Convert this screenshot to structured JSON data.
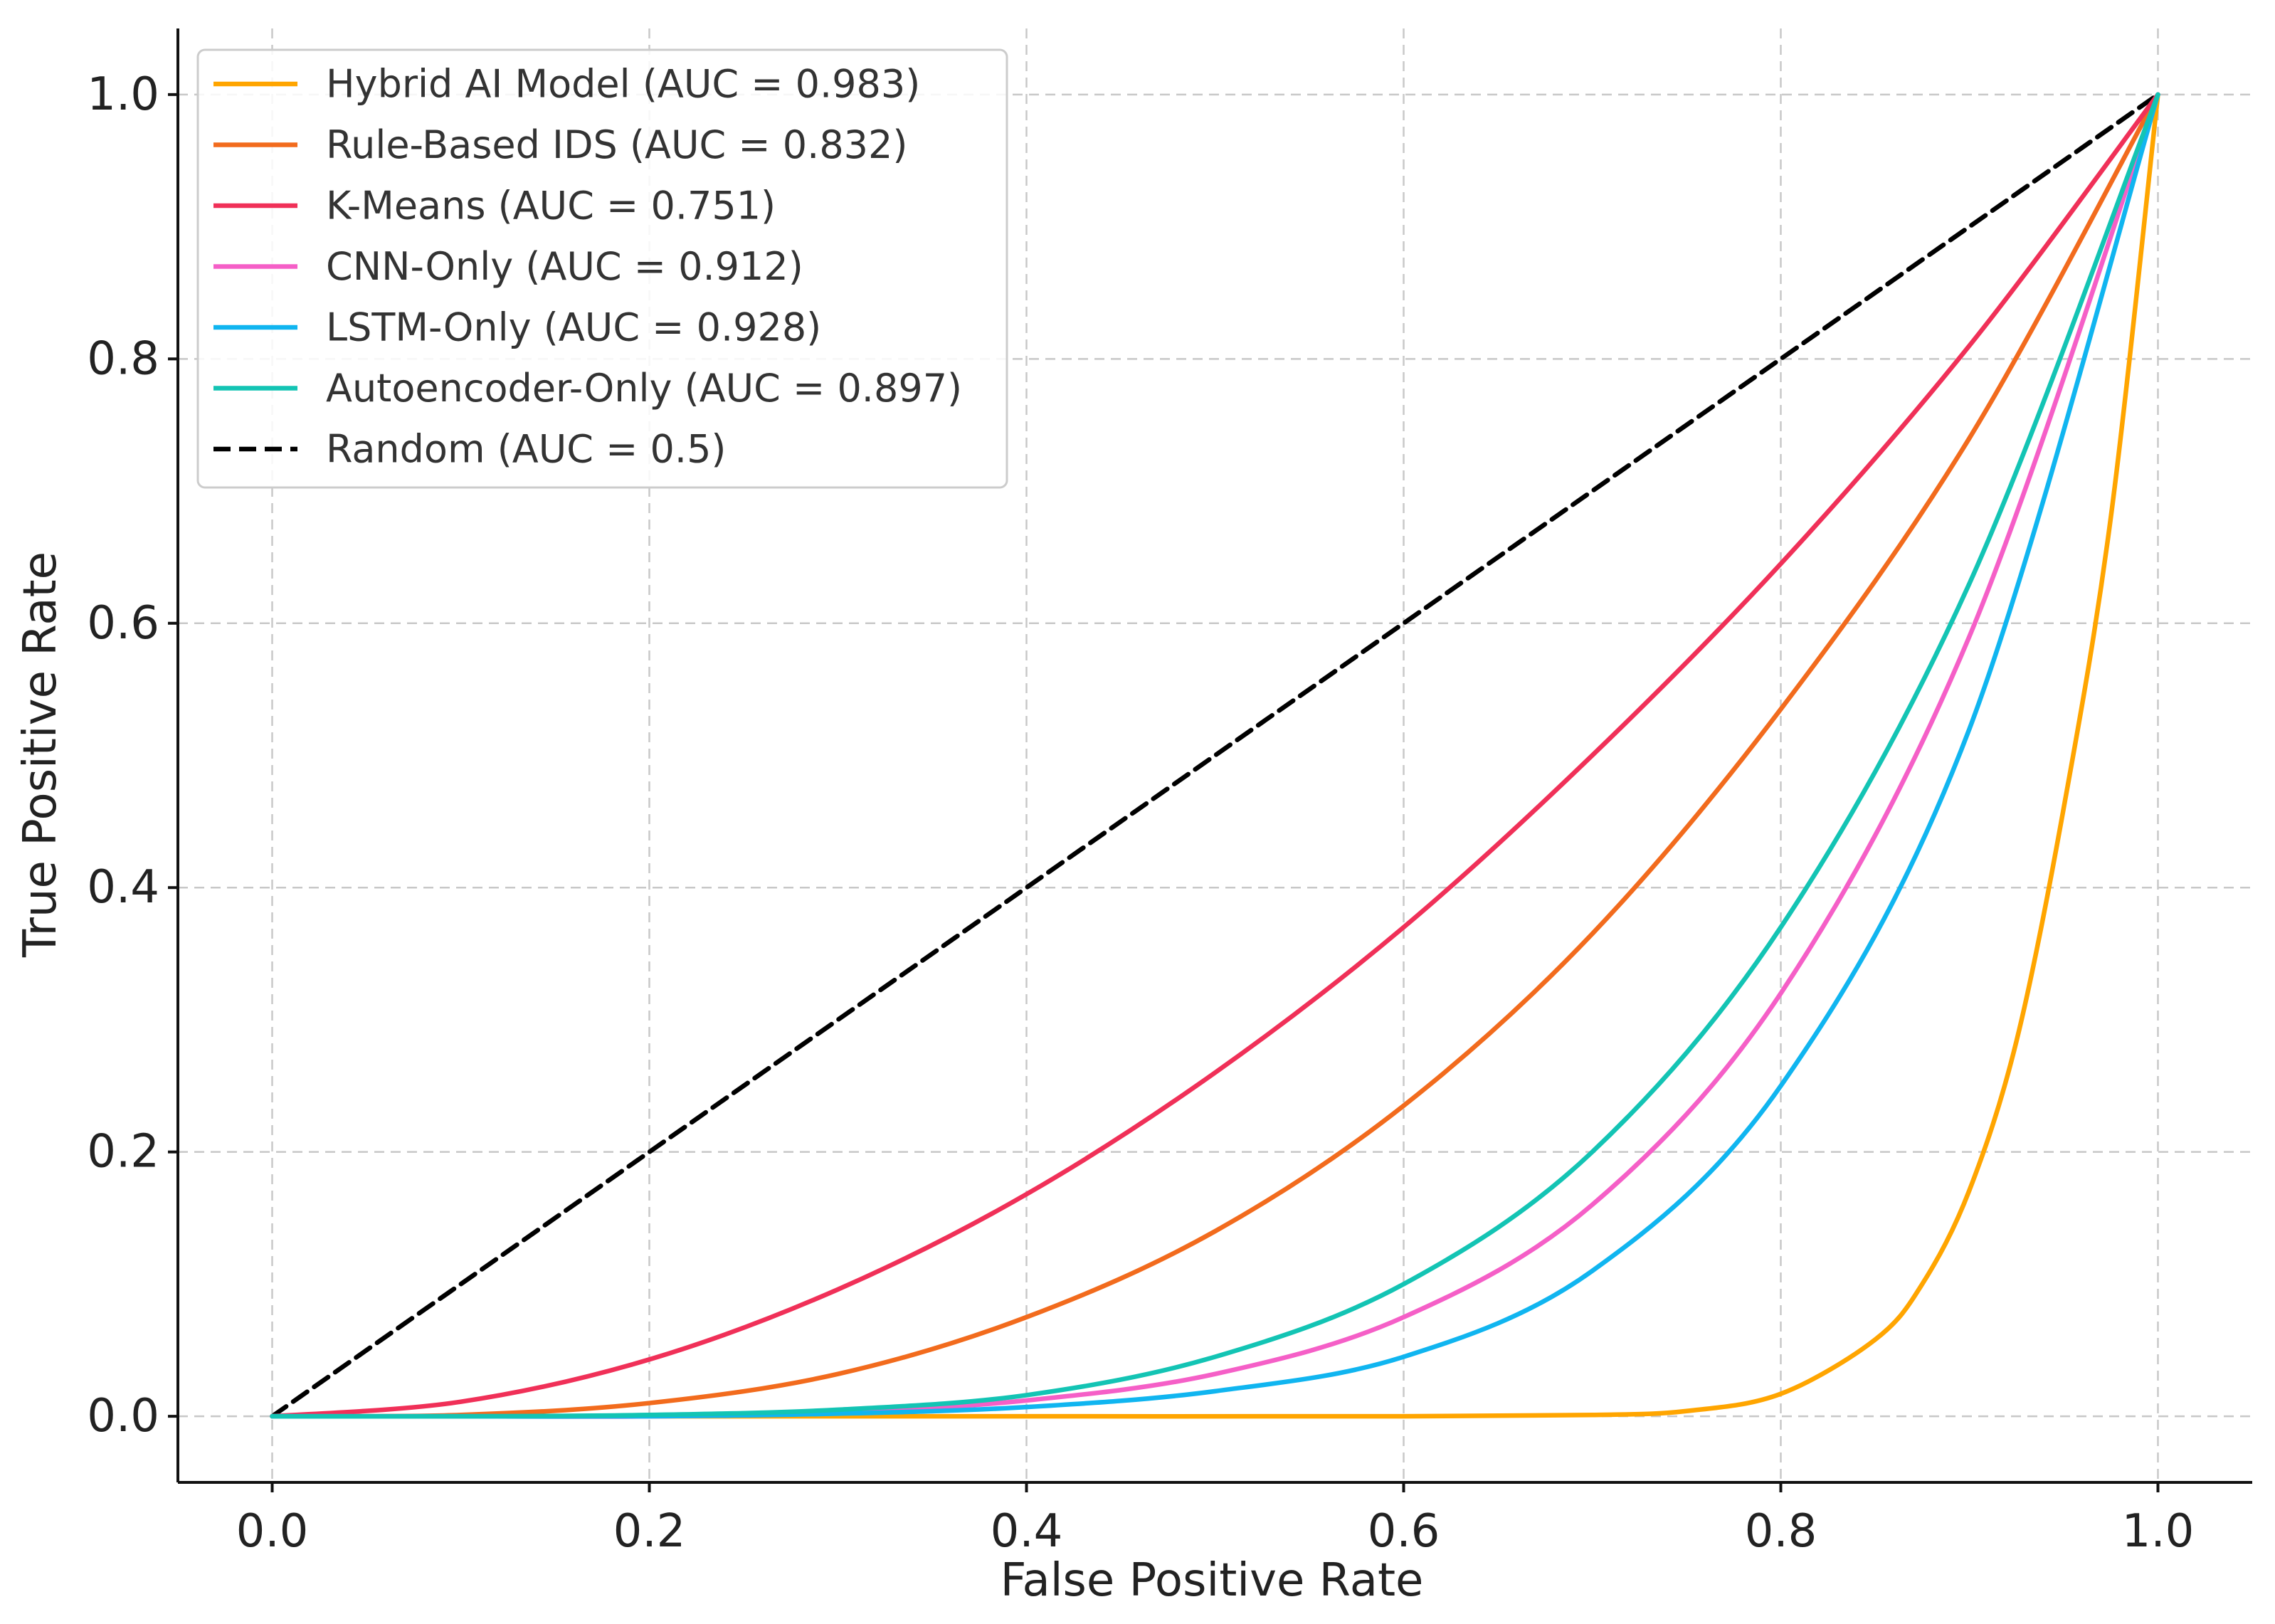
{
  "chart_data": {
    "type": "line",
    "title": "",
    "xlabel": "False Positive Rate",
    "ylabel": "True Positive Rate",
    "xlim": [
      -0.05,
      1.05
    ],
    "ylim": [
      -0.05,
      1.05
    ],
    "xticks": [
      0.0,
      0.2,
      0.4,
      0.6,
      0.8,
      1.0
    ],
    "yticks": [
      0.0,
      0.2,
      0.4,
      0.6,
      0.8,
      1.0
    ],
    "xtick_labels": [
      "0.0",
      "0.2",
      "0.4",
      "0.6",
      "0.8",
      "1.0"
    ],
    "ytick_labels": [
      "0.0",
      "0.2",
      "0.4",
      "0.6",
      "0.8",
      "1.0"
    ],
    "grid": true,
    "legend_position": "top-left",
    "series": [
      {
        "name": "Hybrid AI Model (AUC = 0.983)",
        "color": "#FFA500",
        "dash": "solid",
        "x": [
          0.0,
          0.2,
          0.4,
          0.6,
          0.7,
          0.75,
          0.8,
          0.85,
          0.875,
          0.9,
          0.925,
          0.95,
          0.975,
          1.0
        ],
        "y": [
          0.0,
          0.0,
          0.0,
          0.0,
          0.001,
          0.004,
          0.017,
          0.058,
          0.1,
          0.171,
          0.284,
          0.46,
          0.68,
          1.0
        ]
      },
      {
        "name": "Rule-Based IDS (AUC = 0.832)",
        "color": "#F26B1D",
        "dash": "solid",
        "x": [
          0.0,
          0.1,
          0.2,
          0.3,
          0.4,
          0.5,
          0.6,
          0.7,
          0.8,
          0.9,
          1.0
        ],
        "y": [
          0.0,
          0.001,
          0.01,
          0.032,
          0.075,
          0.14,
          0.235,
          0.365,
          0.535,
          0.74,
          1.0
        ]
      },
      {
        "name": "K-Means (AUC = 0.751)",
        "color": "#F03058",
        "dash": "solid",
        "x": [
          0.0,
          0.1,
          0.2,
          0.3,
          0.4,
          0.5,
          0.6,
          0.7,
          0.8,
          0.9,
          1.0
        ],
        "y": [
          0.0,
          0.011,
          0.043,
          0.096,
          0.168,
          0.26,
          0.37,
          0.5,
          0.645,
          0.81,
          1.0
        ]
      },
      {
        "name": "CNN-Only (AUC = 0.912)",
        "color": "#F55FC7",
        "dash": "solid",
        "x": [
          0.0,
          0.1,
          0.2,
          0.3,
          0.4,
          0.5,
          0.6,
          0.7,
          0.8,
          0.9,
          1.0
        ],
        "y": [
          0.0,
          0.0,
          0.0,
          0.003,
          0.012,
          0.032,
          0.075,
          0.16,
          0.32,
          0.59,
          1.0
        ]
      },
      {
        "name": "LSTM-Only (AUC = 0.928)",
        "color": "#10B5F0",
        "dash": "solid",
        "x": [
          0.0,
          0.1,
          0.2,
          0.3,
          0.4,
          0.5,
          0.6,
          0.7,
          0.8,
          0.9,
          1.0
        ],
        "y": [
          0.0,
          0.0,
          0.0,
          0.002,
          0.007,
          0.019,
          0.045,
          0.11,
          0.25,
          0.52,
          1.0
        ]
      },
      {
        "name": "Autoencoder-Only (AUC = 0.897)",
        "color": "#13C4B4",
        "dash": "solid",
        "x": [
          0.0,
          0.1,
          0.2,
          0.3,
          0.4,
          0.5,
          0.6,
          0.7,
          0.8,
          0.9,
          1.0
        ],
        "y": [
          0.0,
          0.0,
          0.001,
          0.005,
          0.016,
          0.045,
          0.1,
          0.2,
          0.37,
          0.63,
          1.0
        ]
      },
      {
        "name": "Random (AUC = 0.5)",
        "color": "#000000",
        "dash": "dashed",
        "x": [
          0.0,
          1.0
        ],
        "y": [
          0.0,
          1.0
        ]
      }
    ]
  }
}
